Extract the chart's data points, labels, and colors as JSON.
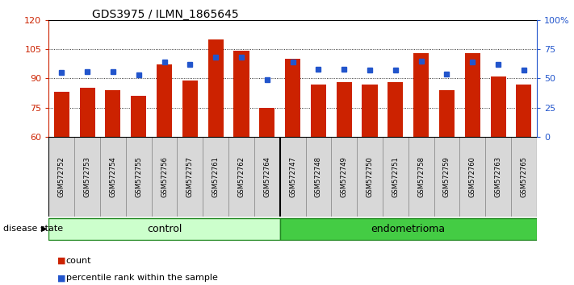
{
  "title": "GDS3975 / ILMN_1865645",
  "samples": [
    "GSM572752",
    "GSM572753",
    "GSM572754",
    "GSM572755",
    "GSM572756",
    "GSM572757",
    "GSM572761",
    "GSM572762",
    "GSM572764",
    "GSM572747",
    "GSM572748",
    "GSM572749",
    "GSM572750",
    "GSM572751",
    "GSM572758",
    "GSM572759",
    "GSM572760",
    "GSM572763",
    "GSM572765"
  ],
  "counts": [
    83,
    85,
    84,
    81,
    97,
    89,
    110,
    104,
    75,
    100,
    87,
    88,
    87,
    88,
    103,
    84,
    103,
    91,
    87
  ],
  "percentiles": [
    55,
    56,
    56,
    53,
    64,
    62,
    68,
    68,
    49,
    64,
    58,
    58,
    57,
    57,
    65,
    54,
    64,
    62,
    57
  ],
  "group_sizes": [
    9,
    10
  ],
  "ylim_left": [
    60,
    120
  ],
  "ylim_right": [
    0,
    100
  ],
  "yticks_left": [
    60,
    75,
    90,
    105,
    120
  ],
  "yticks_right": [
    0,
    25,
    50,
    75,
    100
  ],
  "ytick_labels_right": [
    "0",
    "25",
    "50",
    "75",
    "100%"
  ],
  "bar_color": "#cc2200",
  "dot_color": "#2255cc",
  "control_color": "#ccffcc",
  "endometrioma_color": "#44cc44",
  "right_axis_color": "#2255cc",
  "left_axis_color": "#cc2200"
}
